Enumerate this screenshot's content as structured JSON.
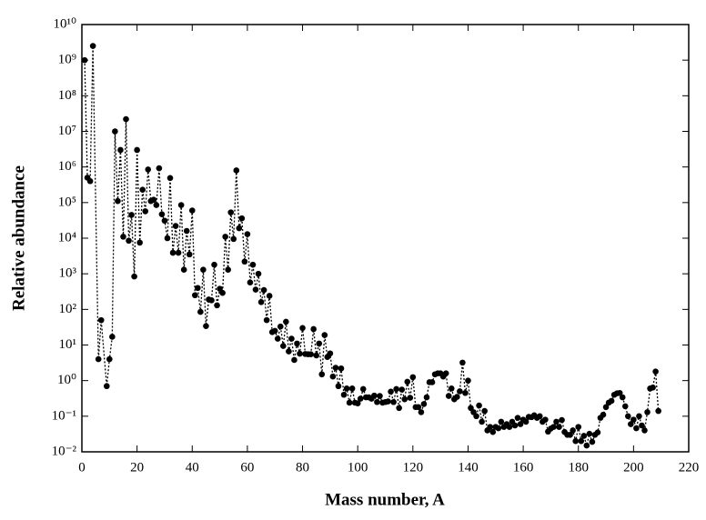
{
  "chart_data": {
    "type": "scatter",
    "xlabel": "Mass number, A",
    "ylabel": "Relative abundance",
    "yscale": "log",
    "color": "#000000",
    "linestyle": "dotted",
    "xlim": [
      0,
      220
    ],
    "xticks": [
      0,
      20,
      40,
      60,
      80,
      100,
      120,
      140,
      160,
      180,
      200,
      220
    ],
    "ylim": [
      0.01,
      10000000000
    ],
    "yticks": [
      {
        "value": 0.01,
        "label": "10⁻²"
      },
      {
        "value": 0.1,
        "label": "10⁻¹"
      },
      {
        "value": 1,
        "label": "10⁰"
      },
      {
        "value": 10,
        "label": "10¹"
      },
      {
        "value": 100,
        "label": "10²"
      },
      {
        "value": 1000,
        "label": "10³"
      },
      {
        "value": 10000,
        "label": "10⁴"
      },
      {
        "value": 100000,
        "label": "10⁵"
      },
      {
        "value": 1000000,
        "label": "10⁶"
      },
      {
        "value": 10000000,
        "label": "10⁷"
      },
      {
        "value": 100000000,
        "label": "10⁸"
      },
      {
        "value": 1000000000,
        "label": "10⁹"
      },
      {
        "value": 10000000000,
        "label": "10¹⁰"
      }
    ],
    "x": [
      1,
      2,
      3,
      4,
      6,
      7,
      9,
      10,
      11,
      12,
      13,
      14,
      15,
      16,
      17,
      18,
      19,
      20,
      21,
      22,
      23,
      24,
      25,
      26,
      27,
      28,
      29,
      30,
      31,
      32,
      33,
      34,
      35,
      36,
      37,
      38,
      39,
      40,
      41,
      42,
      43,
      44,
      45,
      46,
      47,
      48,
      49,
      50,
      51,
      52,
      53,
      54,
      55,
      56,
      57,
      58,
      59,
      60,
      61,
      62,
      63,
      64,
      65,
      66,
      67,
      68,
      69,
      70,
      71,
      72,
      73,
      74,
      75,
      76,
      77,
      78,
      79,
      80,
      81,
      82,
      83,
      84,
      85,
      86,
      87,
      88,
      89,
      90,
      91,
      92,
      93,
      94,
      95,
      96,
      97,
      98,
      99,
      100,
      101,
      102,
      103,
      104,
      105,
      106,
      107,
      108,
      109,
      110,
      111,
      112,
      113,
      114,
      115,
      116,
      117,
      118,
      119,
      120,
      121,
      122,
      123,
      124,
      125,
      126,
      127,
      128,
      129,
      130,
      131,
      132,
      133,
      134,
      135,
      136,
      137,
      138,
      139,
      140,
      141,
      142,
      143,
      144,
      145,
      146,
      147,
      148,
      149,
      150,
      151,
      152,
      153,
      154,
      155,
      156,
      157,
      158,
      159,
      160,
      161,
      162,
      163,
      164,
      165,
      166,
      167,
      168,
      169,
      170,
      171,
      172,
      173,
      174,
      175,
      176,
      177,
      178,
      179,
      180,
      181,
      182,
      183,
      184,
      185,
      186,
      187,
      188,
      189,
      190,
      191,
      192,
      193,
      194,
      195,
      196,
      197,
      198,
      199,
      200,
      201,
      202,
      203,
      204,
      205,
      206,
      207,
      208,
      209
    ],
    "values": [
      1000000000,
      500000,
      400000,
      2500000000,
      4,
      50,
      0.7,
      4,
      17,
      10000000,
      110000,
      3000000,
      11000,
      22000000,
      8500,
      45000,
      840,
      3000000,
      7500,
      230000,
      57000,
      850000,
      110000,
      120000,
      85000,
      920000,
      47000,
      31000,
      10000,
      490000,
      3900,
      22000,
      3900,
      85000,
      1300,
      16000,
      3500,
      60000,
      250,
      400,
      85,
      1300,
      34,
      190,
      180,
      1800,
      130,
      380,
      290,
      11000,
      1300,
      53000,
      9500,
      800000,
      19000,
      36000,
      2200,
      13000,
      570,
      1800,
      360,
      1000,
      160,
      350,
      50,
      240,
      23,
      25,
      15,
      33,
      9.4,
      45,
      6.6,
      15,
      3.8,
      11,
      5.7,
      30,
      5.6,
      5.5,
      5.5,
      28,
      5.1,
      11,
      1.5,
      19,
      4.6,
      5.8,
      1.3,
      2.3,
      0.7,
      2.2,
      0.4,
      0.6,
      0.24,
      0.6,
      0.24,
      0.23,
      0.31,
      0.58,
      0.34,
      0.34,
      0.31,
      0.38,
      0.25,
      0.37,
      0.24,
      0.25,
      0.26,
      0.49,
      0.25,
      0.58,
      0.17,
      0.56,
      0.3,
      0.93,
      0.33,
      1.25,
      0.18,
      0.18,
      0.13,
      0.22,
      0.34,
      0.9,
      0.9,
      1.5,
      1.6,
      1.6,
      1.3,
      1.6,
      0.37,
      0.6,
      0.3,
      0.35,
      0.5,
      3.2,
      0.45,
      1,
      0.17,
      0.13,
      0.1,
      0.2,
      0.07,
      0.14,
      0.04,
      0.05,
      0.036,
      0.05,
      0.046,
      0.07,
      0.05,
      0.06,
      0.05,
      0.07,
      0.055,
      0.09,
      0.06,
      0.08,
      0.07,
      0.096,
      0.094,
      0.106,
      0.09,
      0.1,
      0.07,
      0.08,
      0.037,
      0.045,
      0.05,
      0.07,
      0.05,
      0.078,
      0.036,
      0.03,
      0.03,
      0.04,
      0.02,
      0.05,
      0.02,
      0.028,
      0.015,
      0.032,
      0.019,
      0.03,
      0.035,
      0.09,
      0.11,
      0.18,
      0.24,
      0.27,
      0.4,
      0.44,
      0.45,
      0.34,
      0.19,
      0.1,
      0.06,
      0.08,
      0.046,
      0.1,
      0.055,
      0.04,
      0.13,
      0.6,
      0.64,
      1.8,
      0.14
    ]
  }
}
